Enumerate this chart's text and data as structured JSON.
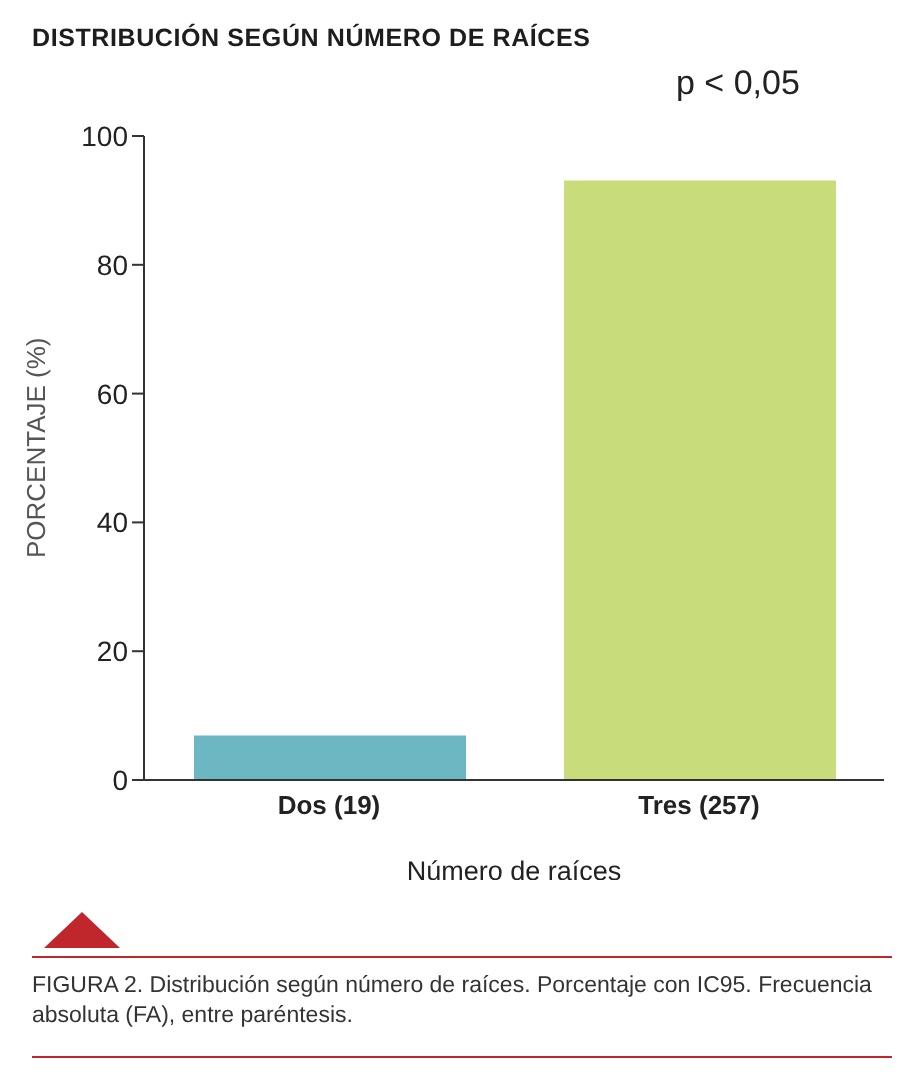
{
  "chart_data": {
    "type": "bar",
    "title": "DISTRIBUCIÓN SEGÚN NÚMERO DE RAÍCES",
    "xlabel": "Número de raíces",
    "ylabel": "PORCENTAJE (%)",
    "categories": [
      "Dos (19)",
      "Tres (257)"
    ],
    "values": [
      6.9,
      93.1
    ],
    "colors": [
      "#6cb7c2",
      "#c8dc7b"
    ],
    "ylim": [
      0,
      100
    ],
    "yticks": [
      0,
      20,
      40,
      60,
      80,
      100
    ],
    "grid": false,
    "legend": false,
    "annotations": [
      "p < 0,05",
      "FIGURA 2. Distribución según número de raíces. Porcentaje con IC95. Frecuencia absoluta (FA), entre paréntesis."
    ]
  }
}
